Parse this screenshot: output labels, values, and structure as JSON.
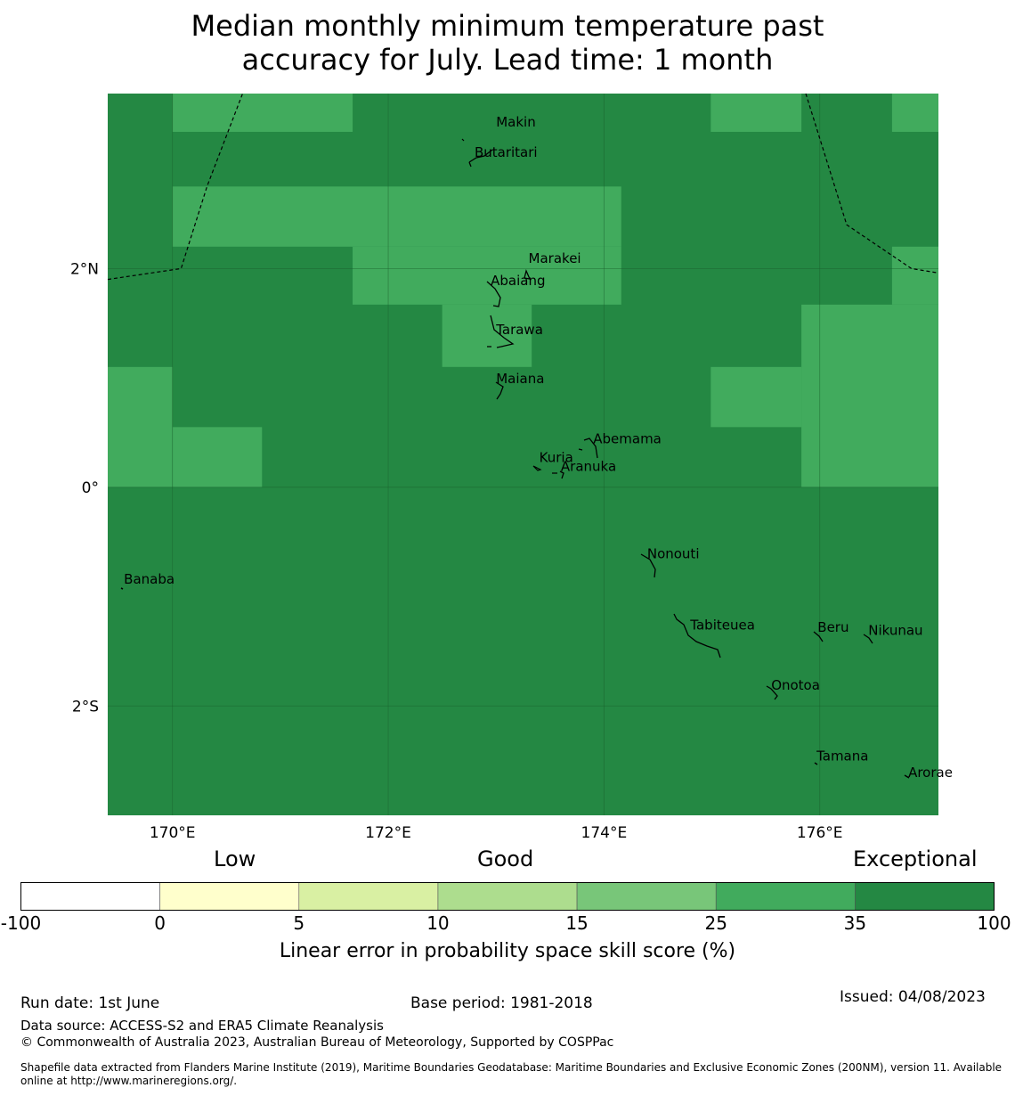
{
  "title": {
    "line1": "Median monthly minimum temperature past",
    "line2": "accuracy for July. Lead time: 1 month"
  },
  "map": {
    "lon_range": [
      169.4,
      177.1
    ],
    "lat_range": [
      -3.0,
      3.6
    ],
    "lon_ticks": [
      {
        "value": 170,
        "label": "170°E"
      },
      {
        "value": 172,
        "label": "172°E"
      },
      {
        "value": 174,
        "label": "174°E"
      },
      {
        "value": 176,
        "label": "176°E"
      }
    ],
    "lat_ticks": [
      {
        "value": 2,
        "label": "2°N"
      },
      {
        "value": 0,
        "label": "0°"
      },
      {
        "value": -2,
        "label": "2°S"
      }
    ],
    "colors": {
      "exceptional": "#248843",
      "good_high": "#41ab5d",
      "gridline": "#1a5e2c",
      "eez_line": "#000000",
      "land": "#000000"
    },
    "skill_grid": {
      "cell_size_deg": 0.833,
      "class_35_100_default": "exceptional",
      "class_25_35_cells": [
        {
          "lon": [
            170.0,
            171.67
          ],
          "lat": [
            3.25,
            3.6
          ]
        },
        {
          "lon": [
            174.99,
            175.83
          ],
          "lat": [
            3.25,
            3.6
          ]
        },
        {
          "lon": [
            176.67,
            177.1
          ],
          "lat": [
            3.25,
            3.6
          ]
        },
        {
          "lon": [
            170.0,
            174.16
          ],
          "lat": [
            2.2,
            2.75
          ]
        },
        {
          "lon": [
            171.67,
            174.16
          ],
          "lat": [
            1.67,
            2.2
          ]
        },
        {
          "lon": [
            172.5,
            173.33
          ],
          "lat": [
            1.1,
            1.67
          ]
        },
        {
          "lon": [
            176.67,
            177.1
          ],
          "lat": [
            1.67,
            2.2
          ]
        },
        {
          "lon": [
            175.83,
            177.1
          ],
          "lat": [
            0.0,
            1.67
          ]
        },
        {
          "lon": [
            174.99,
            175.83
          ],
          "lat": [
            0.55,
            1.1
          ]
        },
        {
          "lon": [
            169.4,
            170.0
          ],
          "lat": [
            0.0,
            1.1
          ]
        },
        {
          "lon": [
            170.0,
            170.83
          ],
          "lat": [
            0.0,
            0.55
          ]
        }
      ]
    },
    "eez_boundaries": [
      {
        "points": [
          [
            169.4,
            1.9
          ],
          [
            170.08,
            2.0
          ],
          [
            170.32,
            2.75
          ],
          [
            170.65,
            3.6
          ]
        ]
      },
      {
        "points": [
          [
            175.87,
            3.6
          ],
          [
            176.25,
            2.4
          ],
          [
            176.85,
            2.0
          ],
          [
            177.1,
            1.96
          ]
        ]
      }
    ],
    "islands": [
      {
        "name": "Makin",
        "lon": 173.0,
        "lat": 3.3
      },
      {
        "name": "Butaritari",
        "lon": 172.8,
        "lat": 3.02
      },
      {
        "name": "Marakei",
        "lon": 173.3,
        "lat": 2.05
      },
      {
        "name": "Abaiang",
        "lon": 172.95,
        "lat": 1.85
      },
      {
        "name": "Tarawa",
        "lon": 173.0,
        "lat": 1.4
      },
      {
        "name": "Maiana",
        "lon": 173.0,
        "lat": 0.95
      },
      {
        "name": "Abemama",
        "lon": 173.9,
        "lat": 0.4
      },
      {
        "name": "Kuria",
        "lon": 173.4,
        "lat": 0.23
      },
      {
        "name": "Aranuka",
        "lon": 173.6,
        "lat": 0.15
      },
      {
        "name": "Nonouti",
        "lon": 174.4,
        "lat": -0.65
      },
      {
        "name": "Banaba",
        "lon": 169.55,
        "lat": -0.88
      },
      {
        "name": "Tabiteuea",
        "lon": 174.8,
        "lat": -1.3
      },
      {
        "name": "Beru",
        "lon": 175.98,
        "lat": -1.32
      },
      {
        "name": "Nikunau",
        "lon": 176.45,
        "lat": -1.35
      },
      {
        "name": "Onotoa",
        "lon": 175.55,
        "lat": -1.85
      },
      {
        "name": "Tamana",
        "lon": 175.97,
        "lat": -2.5
      },
      {
        "name": "Arorae",
        "lon": 176.82,
        "lat": -2.65
      }
    ]
  },
  "colorbar": {
    "category_low": "Low",
    "category_good": "Good",
    "category_exceptional": "Exceptional",
    "bounds": [
      "-100",
      "0",
      "5",
      "10",
      "15",
      "25",
      "35",
      "100"
    ],
    "colors": [
      "#ffffff",
      "#ffffcc",
      "#d9f0a3",
      "#addd8e",
      "#78c679",
      "#41ab5d",
      "#248843"
    ],
    "label": "Linear error in probability space skill score (%)"
  },
  "footer": {
    "run_date": "Run date: 1st June",
    "base_period": "Base period: 1981-2018",
    "issued": "Issued: 04/08/2023",
    "data_source": "Data source: ACCESS-S2 and ERA5 Climate Reanalysis",
    "copyright": "© Commonwealth of Australia 2023, Australian Bureau of Meteorology, Supported by COSPPac",
    "shapefile": "Shapefile data extracted from Flanders Marine Institute (2019), Maritime Boundaries Geodatabase: Maritime Boundaries and Exclusive Economic Zones (200NM), version 11. Available online at http://www.marineregions.org/."
  }
}
